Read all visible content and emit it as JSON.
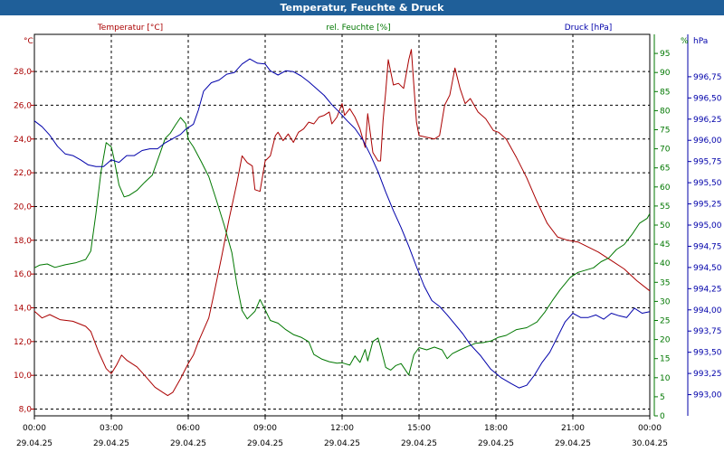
{
  "title": "Temperatur, Feuchte & Druck",
  "chart_data": {
    "type": "line",
    "title": "Temperatur, Feuchte & Druck",
    "x_ticks": [
      {
        "time": "00:00",
        "date": "29.04.25",
        "h": 0
      },
      {
        "time": "03:00",
        "date": "29.04.25",
        "h": 3
      },
      {
        "time": "06:00",
        "date": "29.04.25",
        "h": 6
      },
      {
        "time": "09:00",
        "date": "29.04.25",
        "h": 9
      },
      {
        "time": "12:00",
        "date": "29.04.25",
        "h": 12
      },
      {
        "time": "15:00",
        "date": "29.04.25",
        "h": 15
      },
      {
        "time": "18:00",
        "date": "29.04.25",
        "h": 18
      },
      {
        "time": "21:00",
        "date": "29.04.25",
        "h": 21
      },
      {
        "time": "00:00",
        "date": "30.04.25",
        "h": 24
      }
    ],
    "xlim": [
      0,
      24
    ],
    "grid": true,
    "axes": {
      "temperature": {
        "label": "Temperatur [°C]",
        "unit": "°C",
        "color": "#aa0000",
        "ylim": [
          7.6,
          30.2
        ],
        "ticks": [
          "8,0",
          "10,0",
          "12,0",
          "14,0",
          "16,0",
          "18,0",
          "20,0",
          "22,0",
          "24,0",
          "26,0",
          "28,0"
        ],
        "tick_values": [
          8,
          10,
          12,
          14,
          16,
          18,
          20,
          22,
          24,
          26,
          28
        ]
      },
      "humidity": {
        "label": "rel. Feuchte [%]",
        "unit": "%",
        "color": "#007700",
        "ylim": [
          0,
          100
        ],
        "ticks": [
          "0",
          "5",
          "10",
          "15",
          "20",
          "25",
          "30",
          "35",
          "40",
          "45",
          "50",
          "55",
          "60",
          "65",
          "70",
          "75",
          "80",
          "85",
          "90",
          "95"
        ],
        "tick_values": [
          0,
          5,
          10,
          15,
          20,
          25,
          30,
          35,
          40,
          45,
          50,
          55,
          60,
          65,
          70,
          75,
          80,
          85,
          90,
          95
        ]
      },
      "pressure": {
        "label": "Druck [hPa]",
        "unit": "hPa",
        "color": "#0000aa",
        "ylim": [
          992.75,
          997.25
        ],
        "ticks": [
          "993,00",
          "993,25",
          "993,50",
          "993,75",
          "994,00",
          "994,25",
          "994,50",
          "994,75",
          "995,00",
          "995,25",
          "995,50",
          "995,75",
          "996,00",
          "996,25",
          "996,50",
          "996,75"
        ],
        "tick_values": [
          993,
          993.25,
          993.5,
          993.75,
          994,
          994.25,
          994.5,
          994.75,
          995,
          995.25,
          995.5,
          995.75,
          996,
          996.25,
          996.5,
          996.75
        ]
      }
    },
    "series": [
      {
        "name": "Temperatur [°C]",
        "axis": "temperature",
        "color": "#aa0000",
        "points": [
          [
            0,
            13.8
          ],
          [
            0.3,
            13.4
          ],
          [
            0.6,
            13.6
          ],
          [
            1.0,
            13.3
          ],
          [
            1.5,
            13.2
          ],
          [
            2.0,
            12.9
          ],
          [
            2.2,
            12.6
          ],
          [
            2.5,
            11.4
          ],
          [
            2.8,
            10.4
          ],
          [
            3.0,
            10.1
          ],
          [
            3.2,
            10.6
          ],
          [
            3.4,
            11.2
          ],
          [
            3.6,
            10.9
          ],
          [
            4.0,
            10.5
          ],
          [
            4.3,
            10.0
          ],
          [
            4.7,
            9.3
          ],
          [
            5.0,
            9.0
          ],
          [
            5.2,
            8.8
          ],
          [
            5.4,
            9.0
          ],
          [
            5.7,
            9.8
          ],
          [
            6.0,
            10.7
          ],
          [
            6.2,
            11.2
          ],
          [
            6.4,
            12.0
          ],
          [
            6.8,
            13.4
          ],
          [
            7.0,
            14.8
          ],
          [
            7.3,
            17.0
          ],
          [
            7.6,
            19.3
          ],
          [
            7.9,
            21.4
          ],
          [
            8.1,
            23.0
          ],
          [
            8.3,
            22.6
          ],
          [
            8.5,
            22.4
          ],
          [
            8.6,
            21.0
          ],
          [
            8.8,
            20.9
          ],
          [
            9.0,
            22.7
          ],
          [
            9.2,
            23.0
          ],
          [
            9.4,
            24.2
          ],
          [
            9.5,
            24.4
          ],
          [
            9.7,
            23.9
          ],
          [
            9.9,
            24.3
          ],
          [
            10.1,
            23.8
          ],
          [
            10.3,
            24.4
          ],
          [
            10.5,
            24.6
          ],
          [
            10.7,
            25.0
          ],
          [
            10.9,
            24.9
          ],
          [
            11.1,
            25.3
          ],
          [
            11.3,
            25.4
          ],
          [
            11.5,
            25.6
          ],
          [
            11.6,
            24.9
          ],
          [
            11.8,
            25.3
          ],
          [
            12.0,
            26.1
          ],
          [
            12.1,
            25.4
          ],
          [
            12.3,
            25.8
          ],
          [
            12.5,
            25.3
          ],
          [
            12.7,
            24.6
          ],
          [
            12.9,
            23.5
          ],
          [
            13.0,
            25.5
          ],
          [
            13.2,
            23.2
          ],
          [
            13.4,
            22.7
          ],
          [
            13.5,
            22.7
          ],
          [
            13.6,
            25.1
          ],
          [
            13.7,
            26.8
          ],
          [
            13.8,
            28.7
          ],
          [
            14.0,
            27.2
          ],
          [
            14.2,
            27.3
          ],
          [
            14.4,
            27.0
          ],
          [
            14.6,
            28.7
          ],
          [
            14.7,
            29.3
          ],
          [
            14.9,
            25.0
          ],
          [
            15.0,
            24.2
          ],
          [
            15.3,
            24.1
          ],
          [
            15.6,
            24.0
          ],
          [
            15.8,
            24.2
          ],
          [
            16.0,
            26.0
          ],
          [
            16.2,
            26.6
          ],
          [
            16.4,
            28.2
          ],
          [
            16.6,
            27.0
          ],
          [
            16.8,
            26.1
          ],
          [
            17.0,
            26.4
          ],
          [
            17.3,
            25.6
          ],
          [
            17.6,
            25.2
          ],
          [
            17.9,
            24.5
          ],
          [
            18.1,
            24.4
          ],
          [
            18.4,
            24.0
          ],
          [
            18.8,
            22.9
          ],
          [
            19.2,
            21.7
          ],
          [
            19.6,
            20.3
          ],
          [
            20.0,
            19.0
          ],
          [
            20.4,
            18.2
          ],
          [
            20.8,
            18.0
          ],
          [
            21.2,
            17.9
          ],
          [
            21.6,
            17.6
          ],
          [
            22.0,
            17.3
          ],
          [
            22.5,
            16.8
          ],
          [
            23.0,
            16.3
          ],
          [
            23.5,
            15.6
          ],
          [
            24.0,
            15.0
          ]
        ]
      },
      {
        "name": "rel. Feuchte [%]",
        "axis": "humidity",
        "color": "#007700",
        "points": [
          [
            0,
            38.8
          ],
          [
            0.2,
            39.5
          ],
          [
            0.5,
            39.8
          ],
          [
            0.8,
            38.9
          ],
          [
            1.2,
            39.6
          ],
          [
            1.6,
            40.1
          ],
          [
            2.0,
            41.0
          ],
          [
            2.2,
            43.2
          ],
          [
            2.4,
            53.0
          ],
          [
            2.6,
            64.1
          ],
          [
            2.8,
            71.6
          ],
          [
            3.0,
            70.5
          ],
          [
            3.1,
            67.6
          ],
          [
            3.3,
            60.5
          ],
          [
            3.5,
            57.4
          ],
          [
            3.7,
            57.8
          ],
          [
            4.0,
            59.1
          ],
          [
            4.3,
            61.2
          ],
          [
            4.6,
            63.1
          ],
          [
            4.9,
            68.8
          ],
          [
            5.1,
            72.7
          ],
          [
            5.3,
            74.1
          ],
          [
            5.5,
            76.2
          ],
          [
            5.7,
            78.2
          ],
          [
            5.9,
            76.6
          ],
          [
            6.0,
            72.5
          ],
          [
            6.2,
            70.5
          ],
          [
            6.5,
            66.7
          ],
          [
            6.8,
            62.7
          ],
          [
            7.1,
            56.5
          ],
          [
            7.4,
            50.0
          ],
          [
            7.7,
            42.8
          ],
          [
            7.9,
            34.4
          ],
          [
            8.1,
            27.6
          ],
          [
            8.3,
            25.4
          ],
          [
            8.6,
            27.4
          ],
          [
            8.8,
            30.5
          ],
          [
            9.0,
            27.8
          ],
          [
            9.2,
            25.0
          ],
          [
            9.5,
            24.3
          ],
          [
            9.8,
            22.6
          ],
          [
            10.1,
            21.3
          ],
          [
            10.4,
            20.6
          ],
          [
            10.7,
            19.4
          ],
          [
            10.9,
            16.1
          ],
          [
            11.2,
            14.9
          ],
          [
            11.5,
            14.2
          ],
          [
            11.8,
            13.8
          ],
          [
            12.0,
            13.9
          ],
          [
            12.3,
            13.3
          ],
          [
            12.5,
            15.7
          ],
          [
            12.7,
            14.0
          ],
          [
            12.9,
            17.4
          ],
          [
            13.0,
            14.4
          ],
          [
            13.2,
            19.5
          ],
          [
            13.4,
            20.4
          ],
          [
            13.5,
            18.0
          ],
          [
            13.7,
            12.7
          ],
          [
            13.9,
            12.0
          ],
          [
            14.1,
            13.2
          ],
          [
            14.3,
            13.7
          ],
          [
            14.6,
            10.7
          ],
          [
            14.8,
            16.0
          ],
          [
            15.0,
            17.9
          ],
          [
            15.3,
            17.3
          ],
          [
            15.6,
            18.0
          ],
          [
            15.9,
            17.3
          ],
          [
            16.1,
            15.0
          ],
          [
            16.3,
            16.3
          ],
          [
            16.6,
            17.3
          ],
          [
            16.9,
            18.2
          ],
          [
            17.2,
            19.0
          ],
          [
            17.5,
            19.2
          ],
          [
            17.8,
            19.6
          ],
          [
            18.1,
            20.6
          ],
          [
            18.4,
            21.1
          ],
          [
            18.8,
            22.6
          ],
          [
            19.2,
            23.1
          ],
          [
            19.6,
            24.6
          ],
          [
            19.9,
            27.1
          ],
          [
            20.2,
            30.2
          ],
          [
            20.5,
            33.0
          ],
          [
            20.9,
            36.3
          ],
          [
            21.2,
            37.6
          ],
          [
            21.5,
            38.2
          ],
          [
            21.8,
            38.8
          ],
          [
            22.1,
            40.4
          ],
          [
            22.4,
            41.4
          ],
          [
            22.7,
            43.6
          ],
          [
            23.0,
            44.9
          ],
          [
            23.3,
            47.5
          ],
          [
            23.6,
            50.5
          ],
          [
            23.9,
            51.8
          ],
          [
            24.0,
            53.0
          ]
        ]
      },
      {
        "name": "Druck [hPa]",
        "axis": "pressure",
        "color": "#0000aa",
        "points": [
          [
            0,
            996.23
          ],
          [
            0.3,
            996.16
          ],
          [
            0.6,
            996.06
          ],
          [
            0.9,
            995.93
          ],
          [
            1.2,
            995.84
          ],
          [
            1.5,
            995.82
          ],
          [
            1.8,
            995.77
          ],
          [
            2.1,
            995.71
          ],
          [
            2.4,
            995.69
          ],
          [
            2.7,
            995.69
          ],
          [
            3.0,
            995.77
          ],
          [
            3.3,
            995.74
          ],
          [
            3.6,
            995.82
          ],
          [
            3.9,
            995.82
          ],
          [
            4.2,
            995.88
          ],
          [
            4.5,
            995.9
          ],
          [
            4.8,
            995.9
          ],
          [
            5.1,
            995.97
          ],
          [
            5.4,
            996.02
          ],
          [
            5.7,
            996.07
          ],
          [
            5.9,
            996.13
          ],
          [
            6.2,
            996.19
          ],
          [
            6.4,
            996.36
          ],
          [
            6.6,
            996.58
          ],
          [
            6.9,
            996.68
          ],
          [
            7.2,
            996.71
          ],
          [
            7.5,
            996.78
          ],
          [
            7.8,
            996.8
          ],
          [
            8.1,
            996.9
          ],
          [
            8.4,
            996.96
          ],
          [
            8.7,
            996.91
          ],
          [
            9.0,
            996.9
          ],
          [
            9.2,
            996.82
          ],
          [
            9.5,
            996.77
          ],
          [
            9.8,
            996.82
          ],
          [
            10.1,
            996.81
          ],
          [
            10.4,
            996.76
          ],
          [
            10.7,
            996.69
          ],
          [
            11.0,
            996.61
          ],
          [
            11.3,
            996.53
          ],
          [
            11.6,
            996.42
          ],
          [
            11.9,
            996.33
          ],
          [
            12.2,
            996.23
          ],
          [
            12.5,
            996.14
          ],
          [
            12.8,
            996.01
          ],
          [
            13.1,
            995.83
          ],
          [
            13.4,
            995.63
          ],
          [
            13.7,
            995.39
          ],
          [
            14.0,
            995.17
          ],
          [
            14.3,
            994.97
          ],
          [
            14.6,
            994.75
          ],
          [
            14.9,
            994.51
          ],
          [
            15.2,
            994.28
          ],
          [
            15.5,
            994.11
          ],
          [
            15.8,
            994.04
          ],
          [
            16.1,
            993.94
          ],
          [
            16.4,
            993.83
          ],
          [
            16.7,
            993.72
          ],
          [
            17.0,
            993.59
          ],
          [
            17.4,
            993.46
          ],
          [
            17.8,
            993.3
          ],
          [
            18.2,
            993.2
          ],
          [
            18.6,
            993.13
          ],
          [
            18.9,
            993.08
          ],
          [
            19.2,
            993.11
          ],
          [
            19.5,
            993.23
          ],
          [
            19.8,
            993.38
          ],
          [
            20.1,
            993.5
          ],
          [
            20.4,
            993.68
          ],
          [
            20.7,
            993.86
          ],
          [
            21.0,
            993.96
          ],
          [
            21.3,
            993.91
          ],
          [
            21.6,
            993.91
          ],
          [
            21.9,
            993.94
          ],
          [
            22.2,
            993.89
          ],
          [
            22.5,
            993.96
          ],
          [
            22.8,
            993.93
          ],
          [
            23.1,
            993.91
          ],
          [
            23.4,
            994.02
          ],
          [
            23.7,
            993.96
          ],
          [
            24.0,
            993.98
          ]
        ]
      }
    ]
  }
}
